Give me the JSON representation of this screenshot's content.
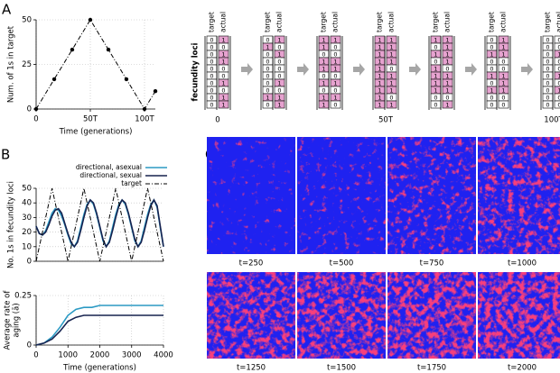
{
  "panel_labels": [
    "A",
    "B",
    "C"
  ],
  "chart_data": [
    {
      "type": "line",
      "ylabel": "Num. of 1s in target",
      "xlabel": "Time (generations)",
      "x": [
        0,
        16.7,
        33.3,
        50,
        66.7,
        83.3,
        100,
        110
      ],
      "series": [
        {
          "color": "#000000",
          "linestyle": "dashdot",
          "marker": "o",
          "values": [
            0,
            16.7,
            33.3,
            50,
            33.3,
            16.7,
            0,
            10
          ]
        }
      ],
      "xlim": [
        0,
        110
      ],
      "ylim": [
        0,
        50
      ],
      "xticks": [
        0,
        {
          "value": 50,
          "label": "50T"
        },
        {
          "value": 100,
          "label": "100T"
        }
      ],
      "yticks": [
        0,
        25,
        50
      ],
      "grid": true
    },
    {
      "type": "line",
      "ylabel": "No. 1s in fecundity loci",
      "x": [
        0,
        100,
        200,
        300,
        400,
        500,
        600,
        700,
        800,
        900,
        1000,
        1100,
        1200,
        1300,
        1400,
        1500,
        1600,
        1700,
        1800,
        1900,
        2000,
        2100,
        2200,
        2300,
        2400,
        2500,
        2600,
        2700,
        2800,
        2900,
        3000,
        3100,
        3200,
        3300,
        3400,
        3500,
        3600,
        3700,
        3800,
        3900,
        4000
      ],
      "series": [
        {
          "name": "directional, asexual",
          "color": "#2b9ac4",
          "values": [
            24,
            19,
            18,
            21,
            27,
            33,
            36,
            35,
            31,
            25,
            18,
            12,
            10,
            14,
            23,
            32,
            39,
            42,
            39,
            32,
            23,
            14,
            10,
            14,
            23,
            32,
            39,
            42,
            39,
            32,
            23,
            14,
            10,
            14,
            23,
            32,
            39,
            42,
            37,
            23,
            10
          ]
        },
        {
          "name": "directional, sexual",
          "color": "#16224f",
          "values": [
            24,
            19,
            18,
            20,
            25,
            31,
            35,
            36,
            33,
            26,
            19,
            13,
            10,
            13,
            21,
            30,
            38,
            42,
            40,
            33,
            24,
            15,
            10,
            13,
            21,
            30,
            38,
            42,
            40,
            33,
            24,
            15,
            10,
            13,
            21,
            30,
            38,
            42,
            38,
            24,
            10
          ]
        },
        {
          "name": "target",
          "color": "#000000",
          "linestyle": "dashdot",
          "x": [
            0,
            500,
            1000,
            1500,
            2000,
            2500,
            3000,
            3500,
            4000
          ],
          "values": [
            0,
            50,
            0,
            50,
            0,
            50,
            0,
            50,
            0
          ]
        }
      ],
      "xlim": [
        0,
        4000
      ],
      "ylim": [
        0,
        50
      ],
      "yticks": [
        0,
        10,
        20,
        30,
        40,
        50
      ],
      "grid": true,
      "legend": "upper right"
    },
    {
      "type": "line",
      "ylabel": [
        "Average rate of",
        "aging (ā)"
      ],
      "xlabel": "Time (generations)",
      "x": [
        0,
        250,
        500,
        750,
        1000,
        1250,
        1500,
        1750,
        2000,
        2250,
        2500,
        2750,
        3000,
        3250,
        3500,
        3750,
        4000
      ],
      "series": [
        {
          "color": "#2b9ac4",
          "values": [
            0,
            0.01,
            0.04,
            0.09,
            0.15,
            0.18,
            0.19,
            0.19,
            0.2,
            0.2,
            0.2,
            0.2,
            0.2,
            0.2,
            0.2,
            0.2,
            0.2
          ]
        },
        {
          "color": "#16224f",
          "values": [
            0,
            0.01,
            0.03,
            0.07,
            0.12,
            0.14,
            0.15,
            0.15,
            0.15,
            0.15,
            0.15,
            0.15,
            0.15,
            0.15,
            0.15,
            0.15,
            0.15
          ]
        }
      ],
      "xlim": [
        0,
        4000
      ],
      "ylim": [
        0,
        0.25
      ],
      "xticks": [
        0,
        1000,
        2000,
        3000,
        4000
      ],
      "yticks": [
        0,
        0.25
      ],
      "grid": true
    }
  ],
  "diagram": {
    "axis_label": "fecundity loci",
    "headers": [
      "target",
      "actual"
    ],
    "columns": [
      {
        "target": [
          0,
          0,
          0,
          0,
          0,
          0,
          0,
          0,
          0,
          0
        ],
        "actual": [
          1,
          0,
          1,
          1,
          0,
          0,
          1,
          0,
          1,
          1
        ]
      },
      {
        "target": [
          0,
          1,
          0,
          0,
          0,
          0,
          0,
          0,
          1,
          0
        ],
        "actual": [
          1,
          0,
          1,
          0,
          0,
          0,
          1,
          0,
          1,
          1
        ]
      },
      {
        "target": [
          1,
          1,
          0,
          1,
          1,
          0,
          1,
          0,
          1,
          1
        ],
        "actual": [
          1,
          0,
          0,
          1,
          1,
          0,
          1,
          0,
          1,
          0
        ]
      },
      {
        "target": [
          1,
          1,
          1,
          1,
          1,
          1,
          1,
          1,
          1,
          1
        ],
        "actual": [
          1,
          1,
          1,
          1,
          0,
          1,
          1,
          1,
          0,
          1
        ]
      },
      {
        "target": [
          1,
          0,
          1,
          0,
          1,
          1,
          1,
          1,
          0,
          0
        ],
        "actual": [
          1,
          1,
          1,
          1,
          0,
          1,
          1,
          1,
          0,
          1
        ]
      },
      {
        "target": [
          0,
          0,
          1,
          0,
          0,
          1,
          0,
          1,
          0,
          0
        ],
        "actual": [
          1,
          1,
          1,
          0,
          0,
          1,
          1,
          1,
          0,
          0
        ]
      },
      {
        "target": [
          0,
          0,
          0,
          0,
          0,
          0,
          0,
          0,
          0,
          0
        ],
        "actual": [
          0,
          0,
          1,
          0,
          0,
          1,
          0,
          1,
          0,
          0
        ]
      }
    ],
    "time_labels": [
      "0",
      null,
      null,
      "50T",
      null,
      null,
      "100T"
    ]
  },
  "images": [
    "t=250",
    "t=500",
    "t=750",
    "t=1000",
    "t=1250",
    "t=1500",
    "t=1750",
    "t=2000"
  ]
}
